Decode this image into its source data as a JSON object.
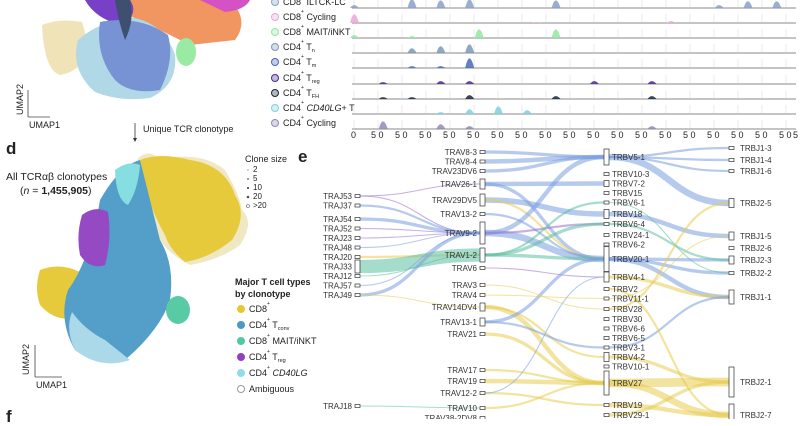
{
  "panel_c": {
    "axis_x": "UMAP1",
    "axis_y": "UMAP2",
    "arrow_label": "Unique TCR clonotype",
    "rows": [
      {
        "prefix": "CD8",
        "sup": "+",
        "name": " ILTCK-LC",
        "sub": "",
        "italic": "",
        "tail": "",
        "color": "#8aa0c8",
        "peaks": [
          [
            0,
            0.3
          ],
          [
            6,
            0.9
          ],
          [
            9,
            0.8
          ],
          [
            12,
            0.9
          ],
          [
            21,
            0.8
          ],
          [
            38,
            0.3
          ],
          [
            41,
            0.7
          ],
          [
            44,
            0.7
          ]
        ]
      },
      {
        "prefix": "CD8",
        "sup": "+",
        "name": " Cycling",
        "sub": "",
        "italic": "",
        "tail": "",
        "color": "#e8a8d8",
        "peaks": [
          [
            0,
            0.9
          ],
          [
            19,
            0.1
          ],
          [
            33,
            0.2
          ],
          [
            47,
            0.6
          ]
        ]
      },
      {
        "prefix": "CD8",
        "sup": "+",
        "name": " MAIT/iNKT",
        "sub": "",
        "italic": "",
        "tail": "",
        "color": "#90e8a0",
        "peaks": [
          [
            0,
            0.3
          ],
          [
            6,
            0.2
          ],
          [
            13,
            0.9
          ],
          [
            21,
            0.9
          ]
        ]
      },
      {
        "prefix": "CD4",
        "sup": "+",
        "name": " T",
        "sub": "n",
        "italic": "",
        "tail": "",
        "color": "#7a98b8",
        "peaks": [
          [
            6,
            0.5
          ],
          [
            9,
            0.7
          ],
          [
            12,
            0.9
          ]
        ]
      },
      {
        "prefix": "CD4",
        "sup": "+",
        "name": " T",
        "sub": "m",
        "italic": "",
        "tail": "",
        "color": "#4a68b8",
        "peaks": [
          [
            6,
            0.2
          ],
          [
            9,
            0.2
          ],
          [
            12,
            1.0
          ]
        ]
      },
      {
        "prefix": "CD4",
        "sup": "+",
        "name": " T",
        "sub": "reg",
        "italic": "",
        "tail": "",
        "color": "#4a2a90",
        "peaks": [
          [
            3,
            0.2
          ],
          [
            9,
            0.3
          ],
          [
            12,
            0.3
          ],
          [
            25,
            0.3
          ],
          [
            31,
            0.3
          ]
        ]
      },
      {
        "prefix": "CD4",
        "sup": "+",
        "name": " T",
        "sub": "FH",
        "italic": "",
        "tail": "",
        "color": "#1a2838",
        "peaks": [
          [
            3,
            0.2
          ],
          [
            6,
            0.2
          ],
          [
            12,
            0.4
          ],
          [
            21,
            0.3
          ],
          [
            31,
            0.3
          ]
        ]
      },
      {
        "prefix": "CD4",
        "sup": "+",
        "name": " ",
        "sub": "",
        "italic": "CD40LG",
        "tail": "+ T",
        "color": "#80d0e0",
        "peaks": [
          [
            9,
            0.2
          ],
          [
            12,
            0.5
          ],
          [
            15,
            0.8
          ],
          [
            18,
            0.4
          ]
        ]
      },
      {
        "prefix": "CD4",
        "sup": "+",
        "name": " Cycling",
        "sub": "",
        "italic": "",
        "tail": "",
        "color": "#9088b8",
        "peaks": [
          [
            3,
            0.8
          ],
          [
            9,
            0.5
          ],
          [
            12,
            0.3
          ],
          [
            31,
            0.3
          ],
          [
            47,
            0.9
          ]
        ]
      }
    ],
    "tick_first": "0",
    "tick_repeat": "5 0",
    "tick_last": "5"
  },
  "panel_d": {
    "letter": "d",
    "title": "All TCRαβ clonotypes",
    "n_prefix": "(",
    "n_italic": "n",
    "n_eq": " = ",
    "n_value": "1,455,905",
    "n_suffix": ")",
    "axis_x": "UMAP1",
    "axis_y": "UMAP2",
    "clone_size_title": "Clone size",
    "clone_sizes": [
      "2",
      "5",
      "10",
      "20",
      ">20"
    ],
    "legend_title_1": "Major T cell types",
    "legend_title_2": "by clonotype",
    "legend": [
      {
        "prefix": "CD8",
        "sup": "+",
        "name": "",
        "sub": "",
        "italic": "",
        "color": "#e6c832"
      },
      {
        "prefix": "CD4",
        "sup": "+",
        "name": " T",
        "sub": "conv",
        "italic": "",
        "color": "#4a9ac8"
      },
      {
        "prefix": "CD8",
        "sup": "+",
        "name": " MAIT/iNKT",
        "sub": "",
        "italic": "",
        "color": "#50c8a0"
      },
      {
        "prefix": "CD4",
        "sup": "+",
        "name": " T",
        "sub": "reg",
        "italic": "",
        "color": "#9040c0"
      },
      {
        "prefix": "CD4",
        "sup": "+",
        "name": " ",
        "sub": "",
        "italic": "CD40LG",
        "color": "#90dde8"
      },
      {
        "prefix": "Ambiguous",
        "sup": "",
        "name": "",
        "sub": "",
        "italic": "",
        "color": "#ffffff"
      }
    ]
  },
  "panel_e": {
    "letter": "e",
    "traj": [
      "TRAJ53",
      "TRAJ37",
      "TRAJ54",
      "TRAJ52",
      "TRAJ23",
      "TRAJ48",
      "TRAJ20",
      "TRAJ33",
      "TRAJ12",
      "TRAJ57",
      "TRAJ49",
      "TRAJ18"
    ],
    "trav": [
      "TRAV8-3",
      "TRAV8-4",
      "TRAV23DV6",
      "TRAV26-1",
      "TRAV29DV5",
      "TRAV13-2",
      "TRAV9-2",
      "TRAV1-2",
      "TRAV6",
      "TRAV3",
      "TRAV4",
      "TRAV14DV4",
      "TRAV13-1",
      "TRAV21",
      "TRAV17",
      "TRAV19",
      "TRAV12-2",
      "TRAV10",
      "TRAV38-2DV8"
    ],
    "trbv": [
      "TRBV5-1",
      "TRBV10-3",
      "TRBV7-2",
      "TRBV15",
      "TRBV6-1",
      "TRBV18",
      "TRBV6-4",
      "TRBV24-1",
      "TRBV6-2",
      "TRBV20-1",
      "TRBV4-1",
      "TRBV2",
      "TRBV11-1",
      "TRBV28",
      "TRBV30",
      "TRBV6-6",
      "TRBV6-5",
      "TRBV3-1",
      "TRBV4-2",
      "TRBV10-1",
      "TRBV27",
      "TRBV19",
      "TRBV29-1"
    ],
    "trbj": [
      "TRBJ1-3",
      "TRBJ1-4",
      "TRBJ1-6",
      "TRBJ2-5",
      "TRBJ1-5",
      "TRBJ2-6",
      "TRBJ2-3",
      "TRBJ2-2",
      "TRBJ1-1",
      "TRBJ2-1",
      "TRBJ2-7"
    ],
    "type_colors": {
      "cd8": "#e8cc50",
      "tconv": "#7a9ee0",
      "mait": "#5cc0a0",
      "treg": "#9a70d0"
    },
    "links": [
      [
        "TRAJ53",
        "TRAV9-2",
        1,
        "treg"
      ],
      [
        "TRAJ53",
        "TRAV26-1",
        1,
        "treg"
      ],
      [
        "TRAJ37",
        "TRAV9-2",
        2,
        "tconv"
      ],
      [
        "TRAJ54",
        "TRAV9-2",
        3,
        "tconv"
      ],
      [
        "TRAJ52",
        "TRAV9-2",
        1,
        "treg"
      ],
      [
        "TRAJ23",
        "TRAV9-2",
        1,
        "treg"
      ],
      [
        "TRAJ48",
        "TRAV9-2",
        1,
        "tconv"
      ],
      [
        "TRAJ20",
        "TRAV1-2",
        2,
        "cd8"
      ],
      [
        "TRAJ33",
        "TRAV1-2",
        12,
        "mait"
      ],
      [
        "TRAJ12",
        "TRAV1-2",
        1,
        "mait"
      ],
      [
        "TRAJ57",
        "TRAV9-2",
        1,
        "tconv"
      ],
      [
        "TRAJ49",
        "TRAV9-2",
        3,
        "tconv"
      ],
      [
        "TRAJ49",
        "TRAV14DV4",
        1,
        "cd8"
      ],
      [
        "TRAJ18",
        "TRAV10",
        1,
        "mait"
      ],
      [
        "TRAV8-3",
        "TRBV5-1",
        3,
        "tconv"
      ],
      [
        "TRAV8-4",
        "TRBV5-1",
        4,
        "tconv"
      ],
      [
        "TRAV23DV6",
        "TRBV5-1",
        3,
        "tconv"
      ],
      [
        "TRAV26-1",
        "TRBV7-2",
        4,
        "tconv"
      ],
      [
        "TRAV26-1",
        "TRBV20-1",
        3,
        "tconv"
      ],
      [
        "TRAV29DV5",
        "TRBV18",
        5,
        "tconv"
      ],
      [
        "TRAV29DV5",
        "TRBV20-1",
        2,
        "cd8"
      ],
      [
        "TRAV13-2",
        "TRBV20-1",
        2,
        "tconv"
      ],
      [
        "TRAV9-2",
        "TRBV20-1",
        6,
        "tconv"
      ],
      [
        "TRAV9-2",
        "TRBV5-1",
        4,
        "tconv"
      ],
      [
        "TRAV9-2",
        "TRBV6-4",
        2,
        "treg"
      ],
      [
        "TRAV1-2",
        "TRBV6-4",
        3,
        "mait"
      ],
      [
        "TRAV1-2",
        "TRBV20-1",
        3,
        "mait"
      ],
      [
        "TRAV1-2",
        "TRBV6-1",
        2,
        "mait"
      ],
      [
        "TRAV6",
        "TRBV4-1",
        1,
        "treg"
      ],
      [
        "TRAV14DV4",
        "TRBV27",
        4,
        "cd8"
      ],
      [
        "TRAV14DV4",
        "TRBV4-2",
        2,
        "cd8"
      ],
      [
        "TRAV13-1",
        "TRBV20-1",
        3,
        "tconv"
      ],
      [
        "TRAV13-1",
        "TRBV3-1",
        2,
        "tconv"
      ],
      [
        "TRAV21",
        "TRBV27",
        3,
        "cd8"
      ],
      [
        "TRAV17",
        "TRBV27",
        2,
        "cd8"
      ],
      [
        "TRAV19",
        "TRBV27",
        4,
        "cd8"
      ],
      [
        "TRAV12-2",
        "TRBV19",
        2,
        "cd8"
      ],
      [
        "TRAV12-2",
        "TRBV4-1",
        1,
        "tconv"
      ],
      [
        "TRAV10",
        "TRBV27",
        2,
        "cd8"
      ],
      [
        "TRAV3",
        "TRBV28",
        1,
        "cd8"
      ],
      [
        "TRAV4",
        "TRBV11-1",
        1,
        "cd8"
      ],
      [
        "TRBV5-1",
        "TRBJ2-5",
        6,
        "tconv"
      ],
      [
        "TRBV5-1",
        "TRBJ1-3",
        2,
        "tconv"
      ],
      [
        "TRBV5-1",
        "TRBJ1-4",
        2,
        "tconv"
      ],
      [
        "TRBV5-1",
        "TRBJ1-6",
        2,
        "tconv"
      ],
      [
        "TRBV18",
        "TRBJ1-5",
        4,
        "tconv"
      ],
      [
        "TRBV20-1",
        "TRBJ2-3",
        3,
        "tconv"
      ],
      [
        "TRBV20-1",
        "TRBJ2-2",
        3,
        "tconv"
      ],
      [
        "TRBV20-1",
        "TRBJ1-1",
        4,
        "tconv"
      ],
      [
        "TRBV6-4",
        "TRBJ2-3",
        2,
        "mait"
      ],
      [
        "TRBV6-1",
        "TRBJ2-2",
        1,
        "mait"
      ],
      [
        "TRBV27",
        "TRBJ2-1",
        8,
        "cd8"
      ],
      [
        "TRBV27",
        "TRBJ2-7",
        6,
        "cd8"
      ],
      [
        "TRBV4-1",
        "TRBJ1-1",
        3,
        "cd8"
      ],
      [
        "TRBV4-2",
        "TRBJ2-1",
        3,
        "cd8"
      ],
      [
        "TRBV19",
        "TRBJ2-7",
        4,
        "cd8"
      ],
      [
        "TRBV29-1",
        "TRBJ2-1",
        3,
        "cd8"
      ],
      [
        "TRBV28",
        "TRBJ2-5",
        2,
        "cd8"
      ],
      [
        "TRBV3-1",
        "TRBJ1-1",
        2,
        "tconv"
      ],
      [
        "TRBV11-1",
        "TRBJ1-5",
        1,
        "cd8"
      ],
      [
        "TRBV2",
        "TRBJ2-7",
        2,
        "cd8"
      ]
    ]
  },
  "panel_f": {
    "letter": "f"
  }
}
